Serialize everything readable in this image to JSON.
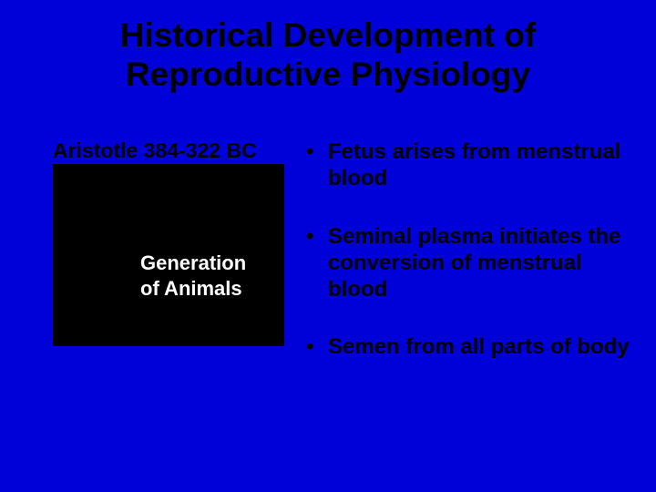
{
  "colors": {
    "background": "#0000d9",
    "text": "#000000",
    "box_bg": "#000000",
    "box_text": "#ffffff"
  },
  "typography": {
    "title_fontsize": 37,
    "body_fontsize": 24,
    "author_fontsize": 23,
    "work_fontsize": 22,
    "font_family": "Arial",
    "bold": true
  },
  "title": {
    "line1": "Historical Development of",
    "line2": "Reproductive Physiology"
  },
  "left": {
    "author": "Aristotle 384-322 BC",
    "work_line1": "Generation",
    "work_line2": "of Animals"
  },
  "bullets": [
    "Fetus arises from menstrual blood",
    "Seminal plasma initiates the conversion of menstrual blood",
    "Semen from all parts of body"
  ]
}
